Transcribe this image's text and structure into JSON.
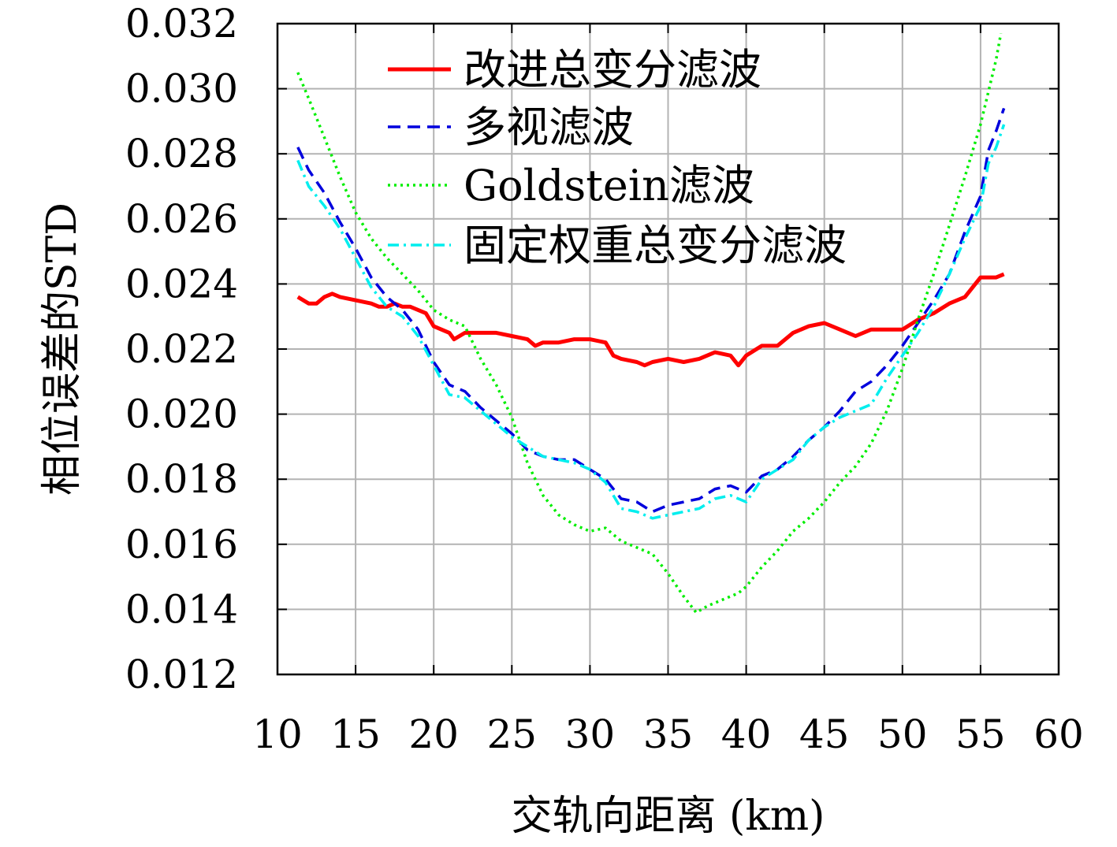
{
  "chart_data": {
    "type": "line",
    "title": "",
    "xlabel": "交轨向距离 (km)",
    "ylabel": "相位误差的STD",
    "xlim": [
      10,
      60
    ],
    "ylim": [
      0.012,
      0.032
    ],
    "xticks": [
      "10",
      "15",
      "20",
      "25",
      "30",
      "35",
      "40",
      "45",
      "50",
      "55",
      "60"
    ],
    "yticks": [
      "0.012",
      "0.014",
      "0.016",
      "0.018",
      "0.020",
      "0.022",
      "0.024",
      "0.026",
      "0.028",
      "0.030",
      "0.032"
    ],
    "grid": true,
    "legend_position": "top",
    "series": [
      {
        "name": "改进总变分滤波",
        "color": "#ff0000",
        "style": "solid",
        "x": [
          11.3,
          12.0,
          12.5,
          13.0,
          13.5,
          14.0,
          15.0,
          16.0,
          16.5,
          17.0,
          17.5,
          18.0,
          18.5,
          19.0,
          19.5,
          20.0,
          21.0,
          21.3,
          22.0,
          23.0,
          24.0,
          25.0,
          26.0,
          26.5,
          27.0,
          28.0,
          29.0,
          30.0,
          31.0,
          31.5,
          32.0,
          33.0,
          33.5,
          34.0,
          35.0,
          36.0,
          37.0,
          38.0,
          39.0,
          39.5,
          40.0,
          41.0,
          42.0,
          43.0,
          44.0,
          45.0,
          46.0,
          47.0,
          48.0,
          49.0,
          50.0,
          51.0,
          52.0,
          53.0,
          54.0,
          55.0,
          55.5,
          56.0,
          56.5
        ],
        "y": [
          0.0236,
          0.0234,
          0.0234,
          0.0236,
          0.0237,
          0.0236,
          0.0235,
          0.0234,
          0.0233,
          0.0233,
          0.0234,
          0.0233,
          0.0233,
          0.0232,
          0.0231,
          0.0227,
          0.0225,
          0.0223,
          0.0225,
          0.0225,
          0.0225,
          0.0224,
          0.0223,
          0.0221,
          0.0222,
          0.0222,
          0.0223,
          0.0223,
          0.0222,
          0.0218,
          0.0217,
          0.0216,
          0.0215,
          0.0216,
          0.0217,
          0.0216,
          0.0217,
          0.0219,
          0.0218,
          0.0215,
          0.0218,
          0.0221,
          0.0221,
          0.0225,
          0.0227,
          0.0228,
          0.0226,
          0.0224,
          0.0226,
          0.0226,
          0.0226,
          0.0229,
          0.0231,
          0.0234,
          0.0236,
          0.0242,
          0.0242,
          0.0242,
          0.0243
        ]
      },
      {
        "name": "多视滤波",
        "color": "#0000dd",
        "style": "dashed",
        "x": [
          11.3,
          12.0,
          13.0,
          14.0,
          15.0,
          16.0,
          17.0,
          18.0,
          19.0,
          20.0,
          21.0,
          22.0,
          23.0,
          24.0,
          25.0,
          26.0,
          27.0,
          28.0,
          29.0,
          30.0,
          31.0,
          32.0,
          33.0,
          34.0,
          35.0,
          36.0,
          37.0,
          38.0,
          39.0,
          40.0,
          41.0,
          42.0,
          43.0,
          44.0,
          45.0,
          46.0,
          47.0,
          48.0,
          49.0,
          50.0,
          51.0,
          52.0,
          53.0,
          54.0,
          55.0,
          55.5,
          56.0,
          56.5
        ],
        "y": [
          0.0282,
          0.0275,
          0.0268,
          0.0259,
          0.0251,
          0.0242,
          0.0236,
          0.0232,
          0.0226,
          0.0216,
          0.0209,
          0.0207,
          0.0202,
          0.0198,
          0.0194,
          0.0189,
          0.0187,
          0.0186,
          0.0186,
          0.0183,
          0.018,
          0.0174,
          0.0173,
          0.017,
          0.0172,
          0.0173,
          0.0174,
          0.0177,
          0.0178,
          0.0176,
          0.0181,
          0.0183,
          0.0187,
          0.0192,
          0.0196,
          0.0201,
          0.0207,
          0.021,
          0.0215,
          0.0221,
          0.0228,
          0.0235,
          0.0243,
          0.0256,
          0.0267,
          0.0281,
          0.0287,
          0.0294
        ]
      },
      {
        "name": "Goldstein滤波",
        "color": "#00ee00",
        "style": "dotted",
        "x": [
          11.3,
          12.0,
          13.0,
          14.0,
          15.0,
          16.0,
          17.0,
          18.0,
          19.0,
          20.0,
          21.0,
          22.0,
          23.0,
          24.0,
          25.0,
          26.0,
          27.0,
          28.0,
          29.0,
          30.0,
          31.0,
          32.0,
          33.0,
          34.0,
          35.0,
          36.0,
          36.8,
          37.5,
          38.5,
          39.5,
          40.0,
          41.0,
          42.0,
          43.0,
          44.0,
          45.0,
          46.0,
          47.0,
          48.0,
          49.0,
          50.0,
          51.0,
          52.0,
          53.0,
          54.0,
          55.0,
          55.5,
          56.0,
          56.3
        ],
        "y": [
          0.0305,
          0.0297,
          0.0285,
          0.0273,
          0.0262,
          0.0254,
          0.0248,
          0.0243,
          0.0238,
          0.0232,
          0.0229,
          0.0227,
          0.0217,
          0.0209,
          0.0199,
          0.0185,
          0.0175,
          0.0169,
          0.0166,
          0.0164,
          0.0165,
          0.0161,
          0.0159,
          0.0157,
          0.0151,
          0.0144,
          0.0139,
          0.0141,
          0.0143,
          0.0145,
          0.0147,
          0.0153,
          0.0158,
          0.0164,
          0.0168,
          0.0173,
          0.0179,
          0.0184,
          0.0191,
          0.0201,
          0.0214,
          0.0229,
          0.0243,
          0.0258,
          0.0273,
          0.0289,
          0.0299,
          0.0309,
          0.0317
        ]
      },
      {
        "name": "固定权重总变分滤波",
        "color": "#00eeee",
        "style": "dashdot",
        "x": [
          11.3,
          12.0,
          13.0,
          14.0,
          15.0,
          16.0,
          17.0,
          18.0,
          19.0,
          20.0,
          21.0,
          22.0,
          23.0,
          24.0,
          25.0,
          26.0,
          27.0,
          28.0,
          29.0,
          30.0,
          31.0,
          32.0,
          33.0,
          34.0,
          35.0,
          36.0,
          37.0,
          38.0,
          39.0,
          40.0,
          41.0,
          42.0,
          43.0,
          44.0,
          45.0,
          46.0,
          47.0,
          48.0,
          49.0,
          50.0,
          51.0,
          52.0,
          53.0,
          54.0,
          55.0,
          55.5,
          56.0,
          56.5
        ],
        "y": [
          0.0278,
          0.027,
          0.0264,
          0.0257,
          0.0248,
          0.0239,
          0.0233,
          0.023,
          0.0224,
          0.0215,
          0.0206,
          0.0205,
          0.0201,
          0.0197,
          0.0193,
          0.019,
          0.0187,
          0.0186,
          0.0185,
          0.0183,
          0.0179,
          0.0171,
          0.017,
          0.0168,
          0.0169,
          0.017,
          0.0171,
          0.0174,
          0.0175,
          0.0173,
          0.018,
          0.0183,
          0.0186,
          0.0192,
          0.0196,
          0.0199,
          0.0201,
          0.0203,
          0.0211,
          0.0218,
          0.0225,
          0.0233,
          0.0243,
          0.0254,
          0.0264,
          0.0277,
          0.0282,
          0.0289
        ]
      }
    ]
  }
}
